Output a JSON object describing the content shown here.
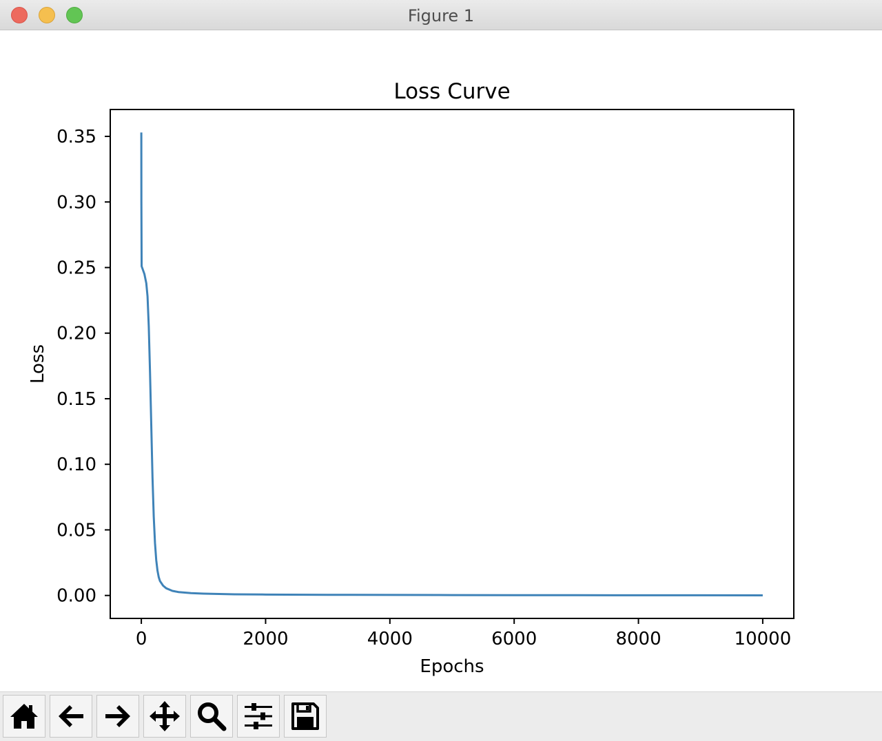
{
  "window": {
    "title": "Figure 1",
    "controls": [
      "close",
      "minimize",
      "maximize"
    ]
  },
  "toolbar": {
    "buttons": [
      {
        "name": "home",
        "icon": "home-icon"
      },
      {
        "name": "back",
        "icon": "arrow-left-icon"
      },
      {
        "name": "forward",
        "icon": "arrow-right-icon"
      },
      {
        "name": "pan",
        "icon": "move-icon"
      },
      {
        "name": "zoom",
        "icon": "magnifier-icon"
      },
      {
        "name": "configure-subplots",
        "icon": "sliders-icon"
      },
      {
        "name": "save",
        "icon": "floppy-disk-icon"
      }
    ]
  },
  "chart_data": {
    "type": "line",
    "title": "Loss Curve",
    "xlabel": "Epochs",
    "ylabel": "Loss",
    "xlim": [
      -500,
      10500
    ],
    "ylim": [
      -0.0175,
      0.3705
    ],
    "xticks": [
      0,
      2000,
      4000,
      6000,
      8000,
      10000
    ],
    "xtick_labels": [
      "0",
      "2000",
      "4000",
      "6000",
      "8000",
      "10000"
    ],
    "yticks": [
      0.0,
      0.05,
      0.1,
      0.15,
      0.2,
      0.25,
      0.3,
      0.35
    ],
    "ytick_labels": [
      "0.00",
      "0.05",
      "0.10",
      "0.15",
      "0.20",
      "0.25",
      "0.30",
      "0.35"
    ],
    "grid": false,
    "legend": "none",
    "series": [
      {
        "color": "#3f83b8",
        "x": [
          0,
          1,
          5,
          20,
          50,
          80,
          100,
          120,
          140,
          160,
          180,
          200,
          220,
          240,
          260,
          280,
          300,
          350,
          400,
          500,
          600,
          800,
          1000,
          1500,
          2000,
          3000,
          4000,
          5000,
          6000,
          7000,
          8000,
          9000,
          10000
        ],
        "y": [
          0.353,
          0.3,
          0.251,
          0.249,
          0.245,
          0.238,
          0.228,
          0.205,
          0.17,
          0.13,
          0.09,
          0.06,
          0.04,
          0.027,
          0.019,
          0.014,
          0.011,
          0.0075,
          0.0055,
          0.0035,
          0.0026,
          0.0018,
          0.0014,
          0.0009,
          0.0007,
          0.0005,
          0.0004,
          0.0003,
          0.00025,
          0.0002,
          0.00017,
          0.00014,
          0.00012
        ]
      }
    ]
  }
}
